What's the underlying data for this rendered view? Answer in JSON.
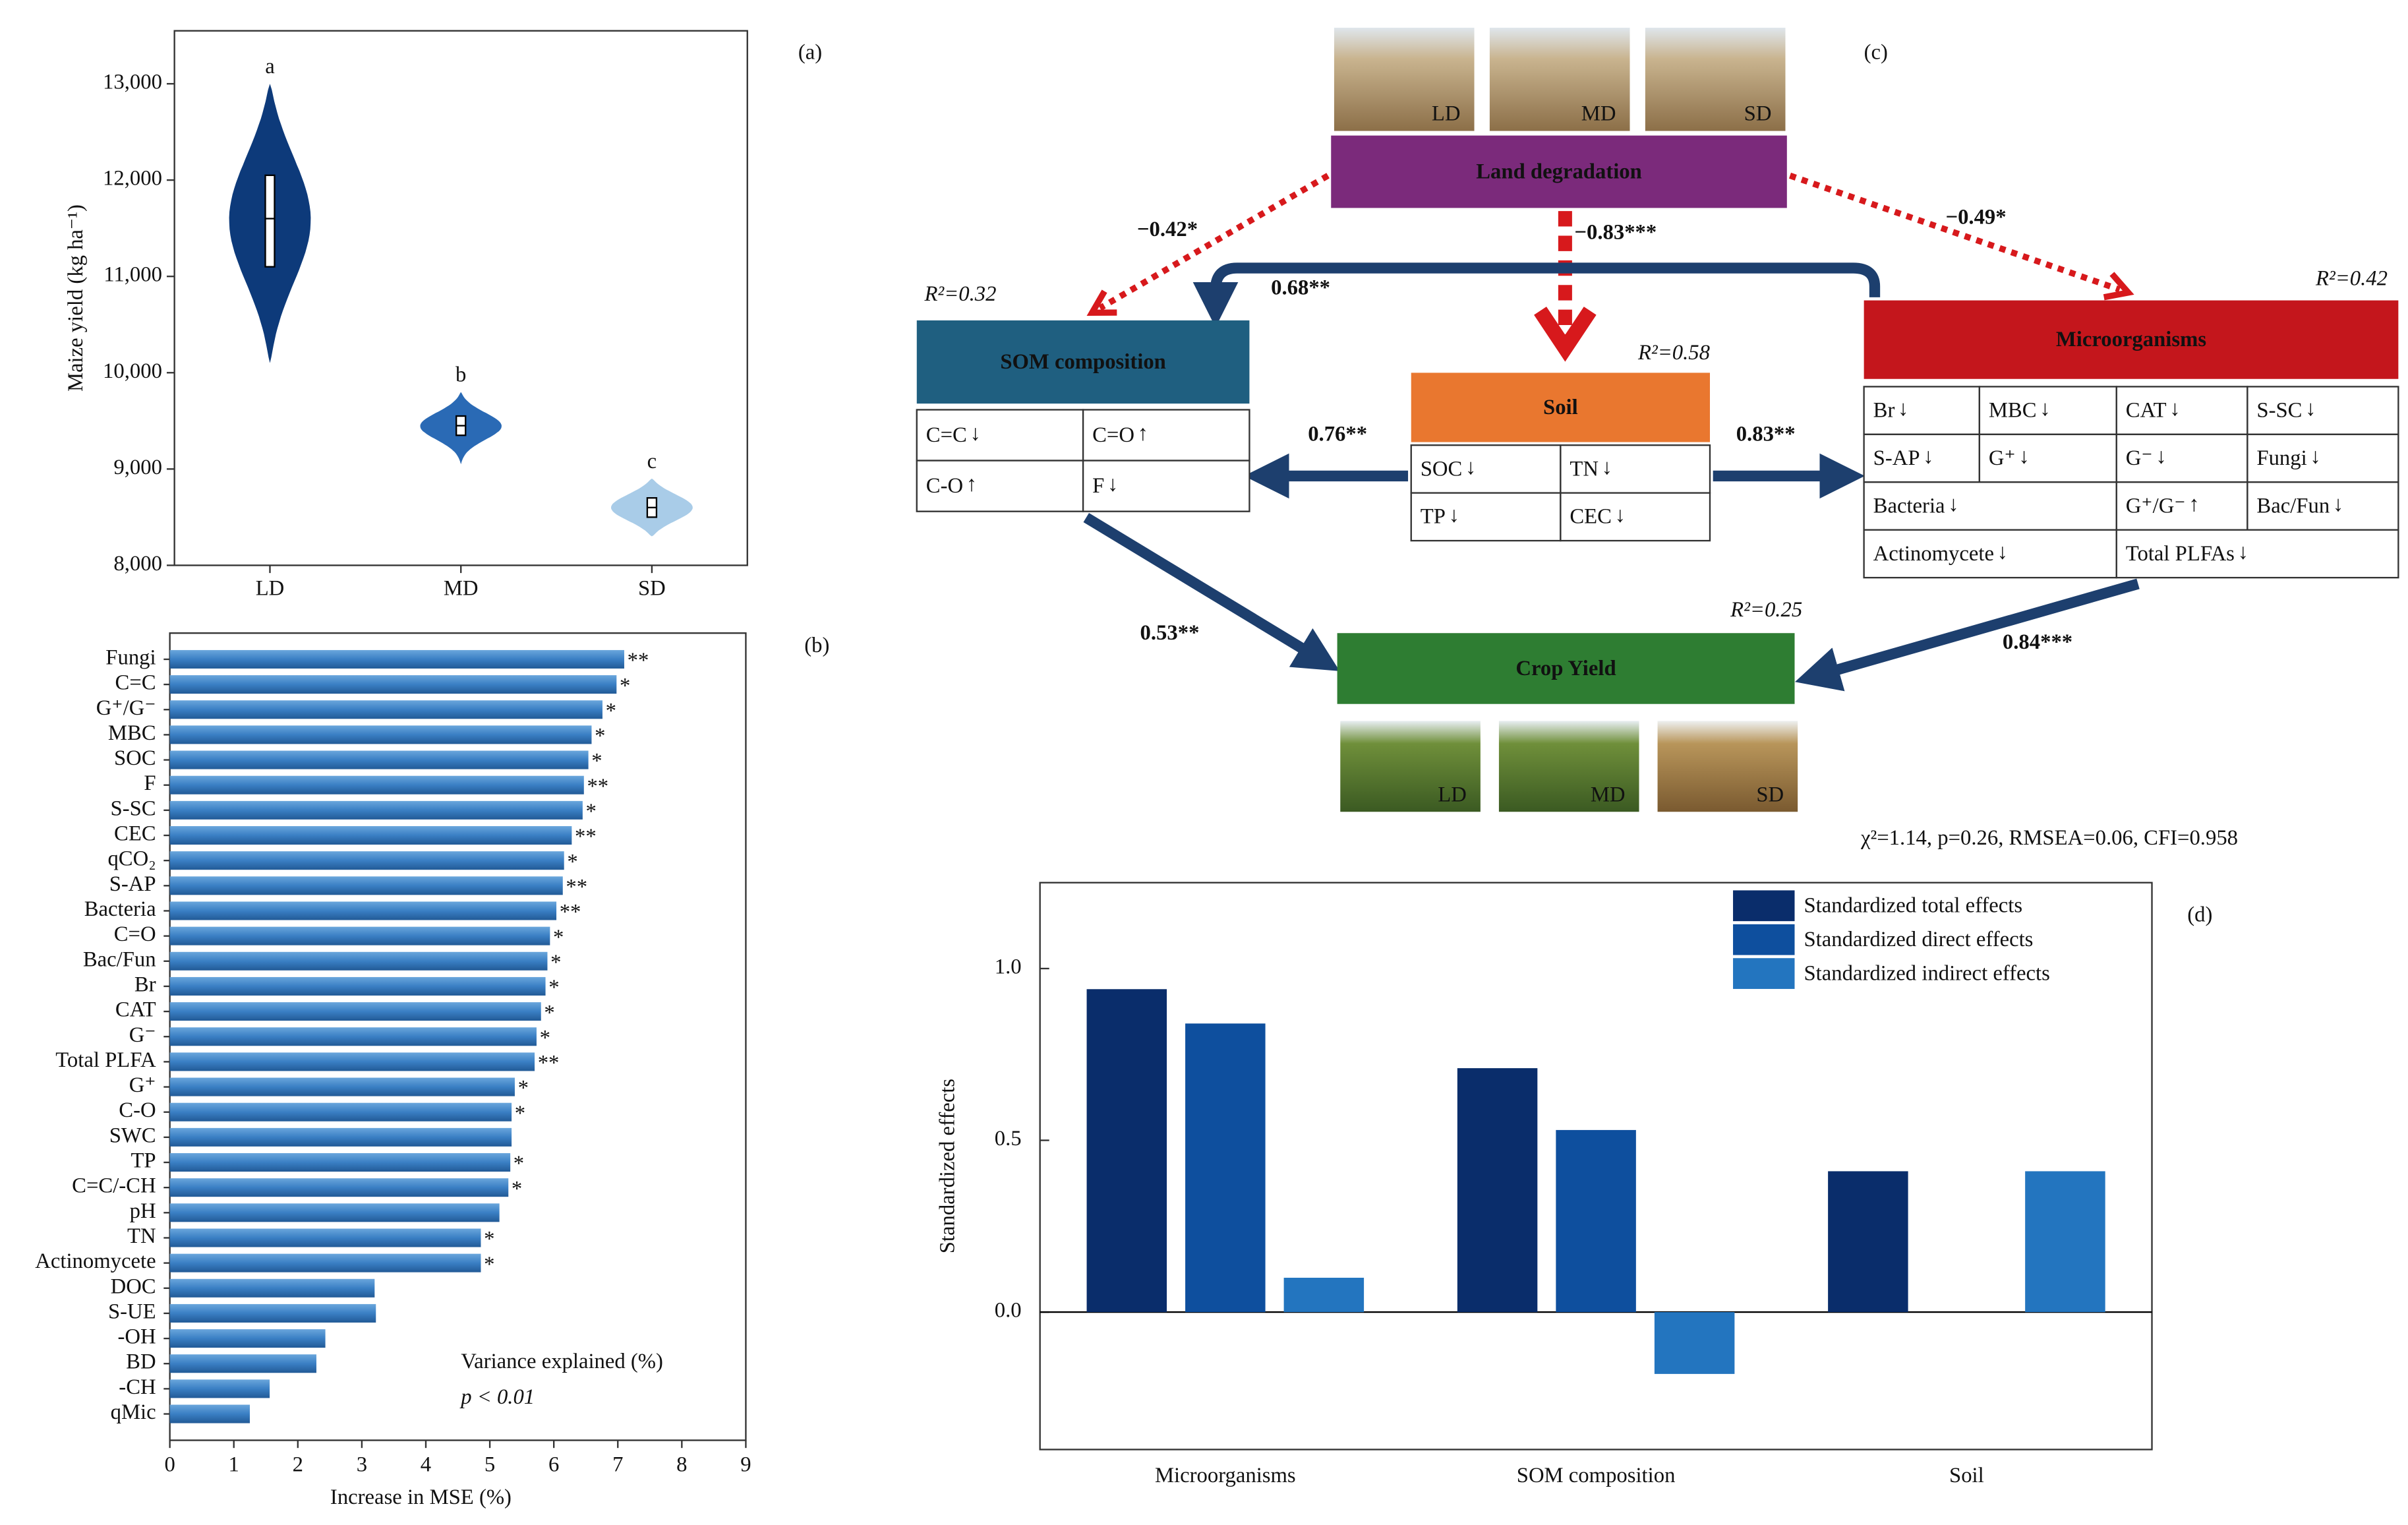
{
  "panel_labels": [
    "(a)",
    "(b)",
    "(c)",
    "(d)"
  ],
  "chart_data": [
    {
      "type": "violin",
      "ylabel": "Maize yield (kg ha⁻¹)",
      "categories": [
        "LD",
        "MD",
        "SD"
      ],
      "min": [
        10100,
        9050,
        8300
      ],
      "q1": [
        11100,
        9350,
        8500
      ],
      "values": [
        11600,
        9450,
        8600
      ],
      "q3": [
        12050,
        9550,
        8700
      ],
      "max": [
        13000,
        9800,
        8900
      ],
      "colors": [
        "#0d3a7a",
        "#2a6ab5",
        "#a9cce8"
      ],
      "annotations": [
        "a",
        "b",
        "c"
      ],
      "ylim": [
        8000,
        13550
      ],
      "yticks": [
        {
          "value": 8000,
          "label": "8,000"
        },
        {
          "value": 9000,
          "label": "9,000"
        },
        {
          "value": 10000,
          "label": "10,000"
        },
        {
          "value": 11000,
          "label": "11,000"
        },
        {
          "value": 12000,
          "label": "12,000"
        },
        {
          "value": 13000,
          "label": "13,000"
        }
      ]
    },
    {
      "type": "barh",
      "xlabel": "Increase in MSE (%)",
      "categories": [
        "Fungi",
        "C=C",
        "G⁺/G⁻",
        "MBC",
        "SOC",
        "F",
        "S-SC",
        "CEC",
        "qCO₂",
        "S-AP",
        "Bacteria",
        "C=O",
        "Bac/Fun",
        "Br",
        "CAT",
        "G⁻",
        "Total PLFA",
        "G⁺",
        "C-O",
        "SWC",
        "TP",
        "C=C/-CH",
        "pH",
        "TN",
        "Actinomycete",
        "DOC",
        "S-UE",
        "-OH",
        "BD",
        "-CH",
        "qMic"
      ],
      "values": [
        7.1,
        6.98,
        6.76,
        6.59,
        6.54,
        6.47,
        6.45,
        6.28,
        6.16,
        6.14,
        6.04,
        5.94,
        5.9,
        5.87,
        5.8,
        5.73,
        5.7,
        5.39,
        5.34,
        5.34,
        5.32,
        5.29,
        5.15,
        4.86,
        4.86,
        3.2,
        3.22,
        2.43,
        2.29,
        1.56,
        1.25
      ],
      "annotations": [
        "**",
        "*",
        "*",
        "*",
        "*",
        "**",
        "*",
        "**",
        "*",
        "**",
        "**",
        "*",
        "*",
        "*",
        "*",
        "*",
        "**",
        "*",
        "*",
        null,
        "*",
        "*",
        null,
        "*",
        "*",
        null,
        null,
        null,
        null,
        null,
        null
      ],
      "notes": [
        "Variance explained (%)",
        "p < 0.01"
      ],
      "color": "#3a7fc4",
      "xlim": [
        0,
        9
      ],
      "xticks": [
        0,
        1,
        2,
        3,
        4,
        5,
        6,
        7,
        8,
        9
      ]
    },
    {
      "type": "grouped_bar",
      "ylabel": "Standardized effects",
      "categories": [
        "Microorganisms",
        "SOM composition",
        "Soil"
      ],
      "series": [
        {
          "name": "Standardized total effects",
          "color": "#0a2d6b",
          "values": [
            0.94,
            0.71,
            0.41
          ]
        },
        {
          "name": "Standardized direct effects",
          "color": "#0e4f9e",
          "values": [
            0.84,
            0.53,
            null
          ]
        },
        {
          "name": "Standardized indirect effects",
          "color": "#2375bf",
          "values": [
            0.1,
            -0.18,
            0.41
          ]
        }
      ],
      "legend": "upper right",
      "ylim": [
        -0.4,
        1.25
      ],
      "yticks": [
        {
          "value": 0,
          "label": "0.0"
        },
        {
          "value": 0.5,
          "label": "0.5"
        },
        {
          "value": 1,
          "label": "1.0"
        }
      ]
    }
  ],
  "diagram": {
    "nodes": [
      {
        "label": "Land degradation"
      },
      {
        "label": "SOM composition",
        "r2": "R²=0.32",
        "rows": [
          [
            {
              "name": "C=C",
              "trend": "↓"
            },
            {
              "name": "C=O",
              "trend": "↑"
            }
          ],
          [
            {
              "name": "C-O",
              "trend": "↑"
            },
            {
              "name": "F",
              "trend": "↓"
            }
          ]
        ]
      },
      {
        "label": "Soil",
        "r2": "R²=0.58",
        "rows": [
          [
            {
              "name": "SOC",
              "trend": "↓"
            },
            {
              "name": "TN",
              "trend": "↓"
            }
          ],
          [
            {
              "name": "TP",
              "trend": "↓"
            },
            {
              "name": "CEC",
              "trend": "↓"
            }
          ]
        ]
      },
      {
        "label": "Microorganisms",
        "r2": "R²=0.42",
        "rows": [
          [
            {
              "name": "Br",
              "trend": "↓"
            },
            {
              "name": "MBC",
              "trend": "↓"
            },
            {
              "name": "CAT",
              "trend": "↓"
            },
            {
              "name": "S-SC",
              "trend": "↓"
            }
          ],
          [
            {
              "name": "S-AP",
              "trend": "↓"
            },
            {
              "name": "G⁺",
              "trend": "↓"
            },
            {
              "name": "G⁻",
              "trend": "↓"
            },
            {
              "name": "Fungi",
              "trend": "↓"
            }
          ],
          [
            {
              "name": "Bacteria",
              "trend": "↓"
            },
            {
              "name": "G⁺/G⁻",
              "trend": "↑"
            },
            {
              "name": "Bac/Fun",
              "trend": "↓"
            }
          ],
          [
            {
              "name": "Actinomycete",
              "trend": "↓"
            },
            {
              "name": "Total PLFAs",
              "trend": "↓"
            }
          ]
        ]
      },
      {
        "label": "Crop Yield",
        "r2": "R²=0.25"
      }
    ],
    "paths": [
      "−0.42*",
      "−0.83***",
      "−0.49*",
      "0.68**",
      "0.76**",
      "0.83**",
      "0.53**",
      "0.84***"
    ],
    "photos_top": [
      "LD",
      "MD",
      "SD"
    ],
    "photos_bottom": [
      "LD",
      "MD",
      "SD"
    ],
    "fit_statistics": "χ²=1.14, p=0.26, RMSEA=0.06, CFI=0.958"
  }
}
